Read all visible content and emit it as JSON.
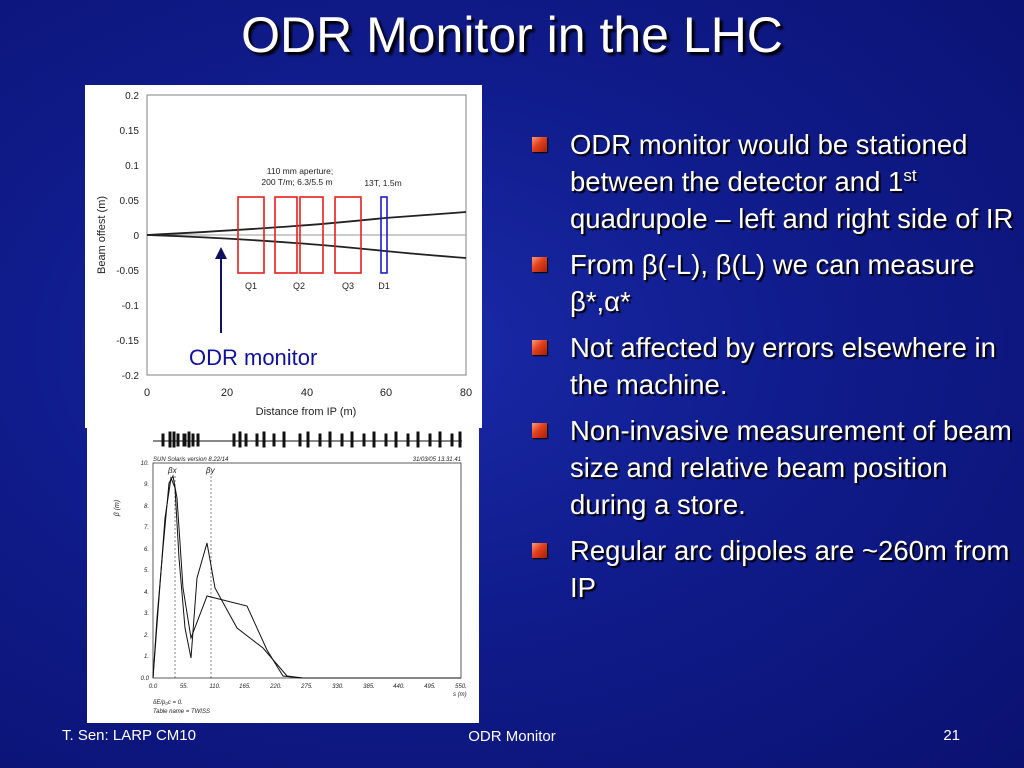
{
  "slide": {
    "title": "ODR Monitor in the LHC"
  },
  "bullets": [
    {
      "pre": "ODR monitor would be stationed between the detector and 1",
      "sup": "st",
      "post": " quadrupole – left and right side of IR"
    },
    {
      "pre": "From β(-L), β(L) we can measure β*,α*",
      "sup": "",
      "post": ""
    },
    {
      "pre": "Not affected by errors elsewhere in the machine.",
      "sup": "",
      "post": ""
    },
    {
      "pre": "Non-invasive measurement of beam size and relative beam position during a store.",
      "sup": "",
      "post": ""
    },
    {
      "pre": "Regular arc dipoles are ~260m from IP",
      "sup": "",
      "post": ""
    }
  ],
  "figure_top": {
    "ylabel": "Beam offest (m)",
    "xlabel": "Distance from IP (m)",
    "y_ticks": [
      "0.2",
      "0.15",
      "0.1",
      "0.05",
      "0",
      "-0.05",
      "-0.1",
      "-0.15",
      "-0.2"
    ],
    "x_ticks": [
      "0",
      "20",
      "40",
      "60",
      "80"
    ],
    "annotation_quads_line1": "110 mm aperture;",
    "annotation_quads_line2": "200 T/m; 6.3/5.5 m",
    "annotation_dipole": "13T, 1.5m",
    "magnet_labels": [
      "Q1",
      "Q2",
      "Q3",
      "D1"
    ],
    "odr_label": "ODR monitor",
    "colors": {
      "quads": "#e8201c",
      "dipole": "#1a1ad0",
      "odr_text": "#1010a0",
      "arrow": "#101060"
    }
  },
  "figure_bottom": {
    "header_left": "SUN Solaris version 8.22/14",
    "header_right": "31/03/05 13.31.41",
    "ylabel": "β (m)",
    "y_ticks": [
      "10.",
      "9.",
      "8.",
      "7.",
      "6.",
      "5.",
      "4.",
      "3.",
      "2.",
      "1.",
      "0.0"
    ],
    "x_ticks": [
      "0.0",
      "55.",
      "110.",
      "165.",
      "220.",
      "275.",
      "330.",
      "385.",
      "440.",
      "495.",
      "550."
    ],
    "xlabel": "s (m)",
    "legend_bx": "βx",
    "legend_by": "βy",
    "footer_line1": "δE/p₀c = 0.",
    "footer_line2": "Table name = TWISS"
  },
  "footer": {
    "left": "T. Sen: LARP CM10",
    "center": "ODR Monitor",
    "right": "21"
  }
}
